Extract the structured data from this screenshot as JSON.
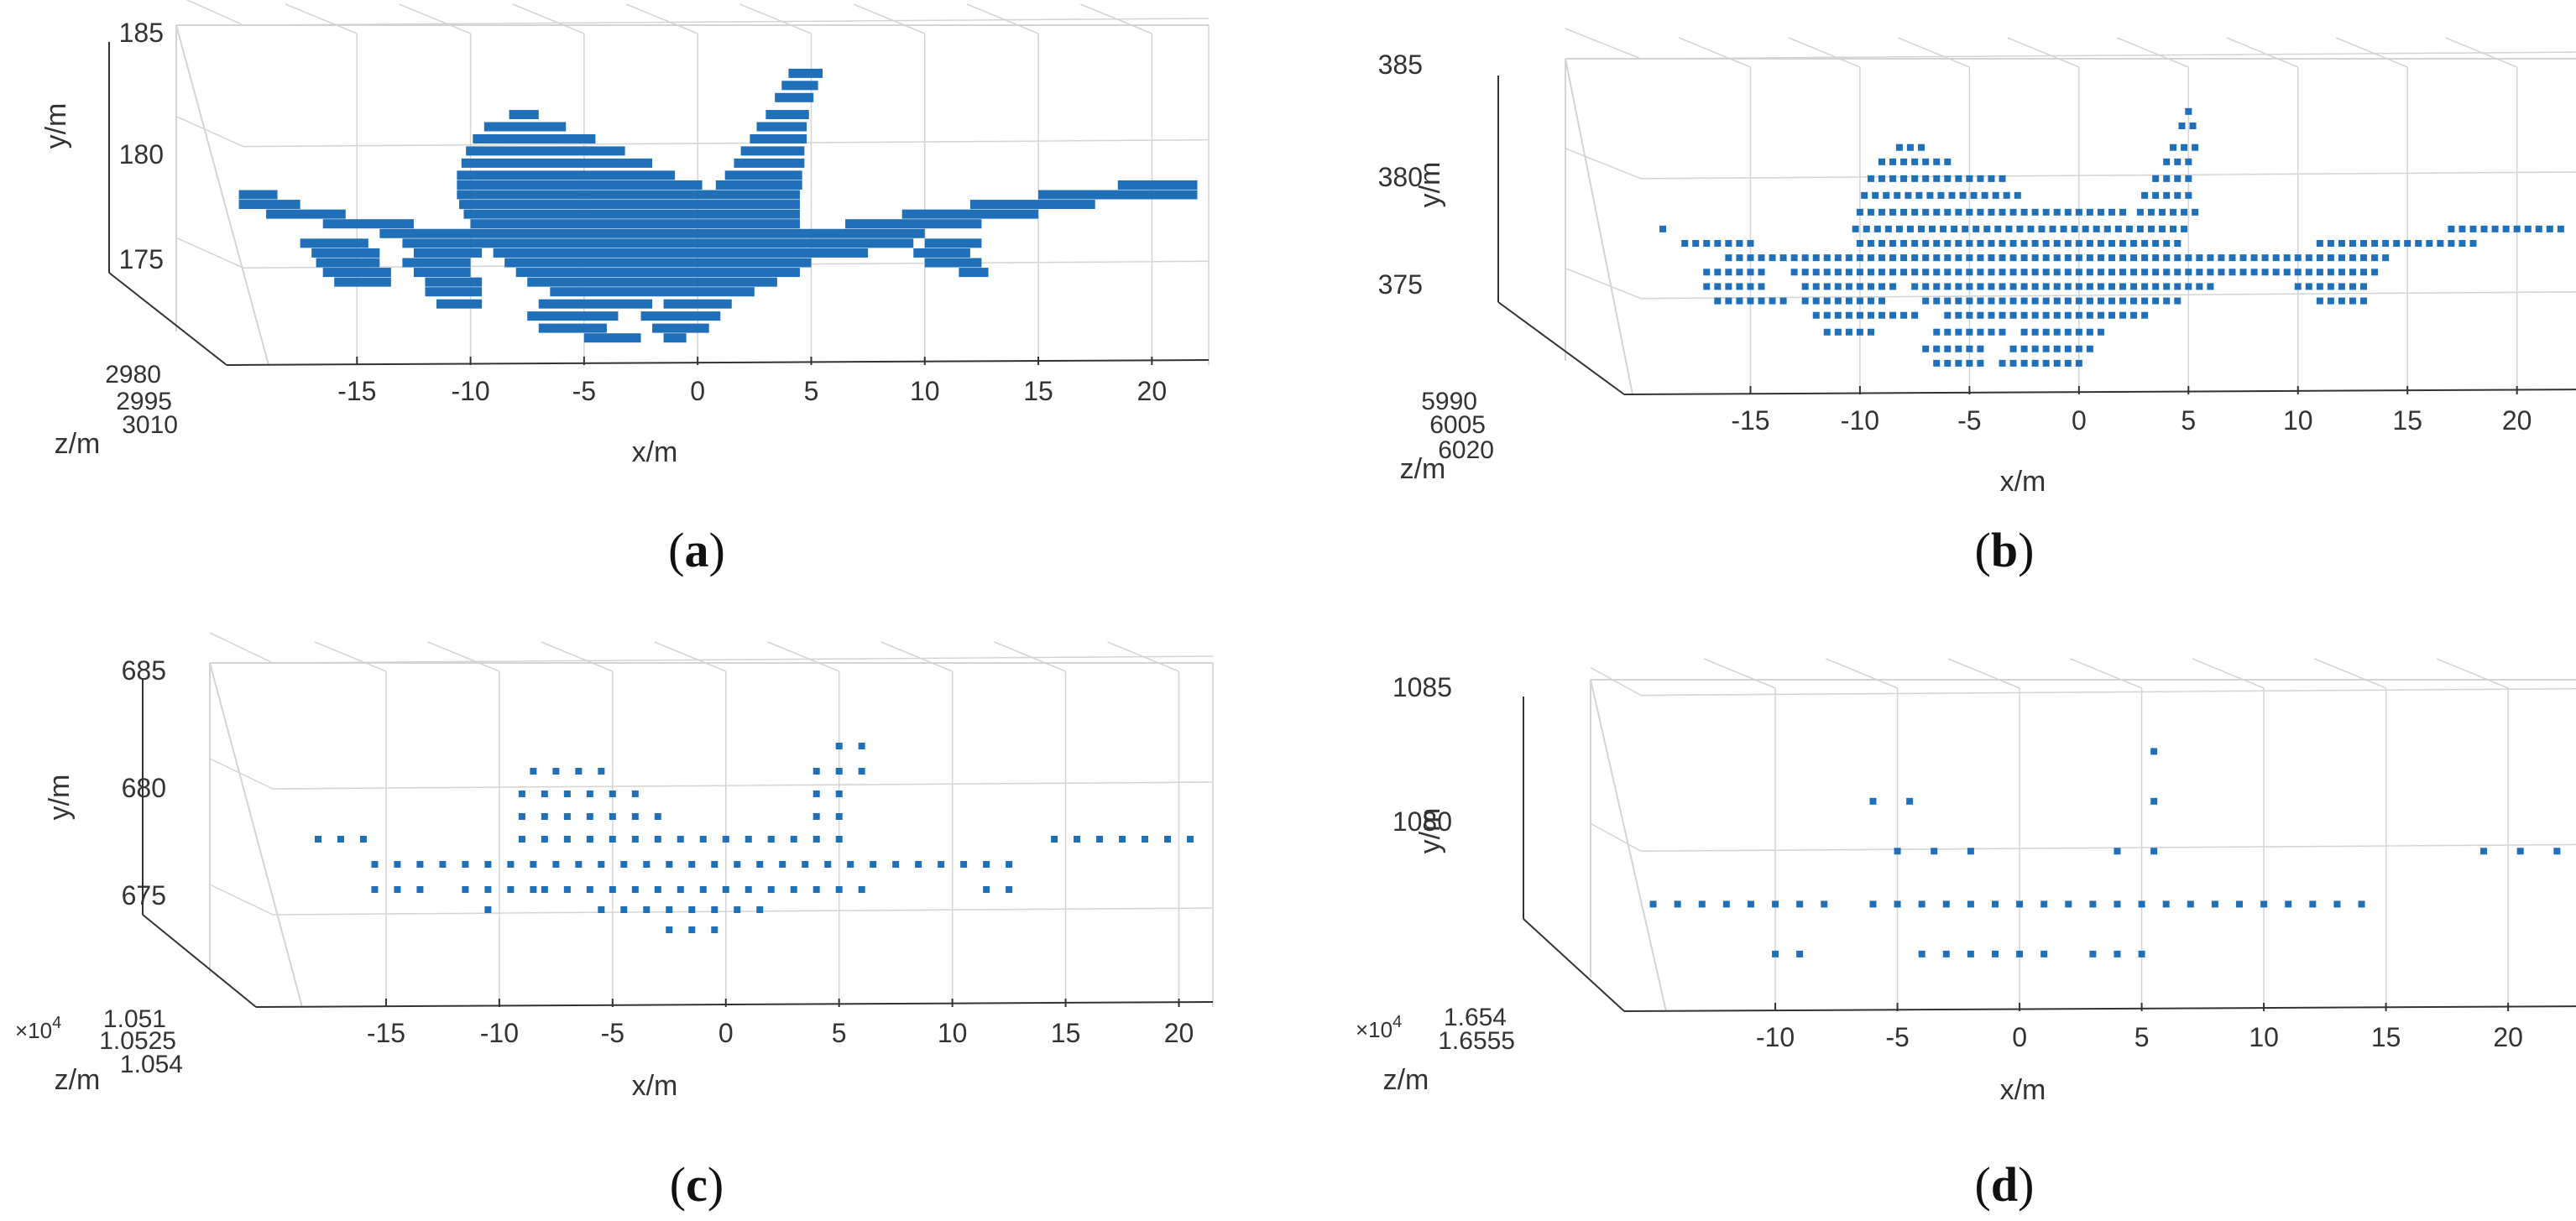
{
  "captions": [
    {
      "open": "(",
      "letter": "a",
      "close": ")"
    },
    {
      "open": "(",
      "letter": "b",
      "close": ")"
    },
    {
      "open": "(",
      "letter": "c",
      "close": ")"
    },
    {
      "open": "(",
      "letter": "d",
      "close": ")"
    }
  ],
  "colors": {
    "points": "#1f6fb9",
    "grid": "#d4d4d4",
    "axis": "#333333",
    "text": "#333333"
  },
  "chart_data": [
    {
      "type": "scatter",
      "panel": "a",
      "xlabel": "x/m",
      "ylabel": "y/m",
      "zlabel": "z/m",
      "xticks": [
        "-15",
        "-10",
        "-5",
        "0",
        "5",
        "10",
        "15",
        "20"
      ],
      "xtick_values": [
        -15,
        -10,
        -5,
        0,
        5,
        10,
        15,
        20
      ],
      "yticks": [
        "175",
        "180",
        "185"
      ],
      "ytick_values": [
        175,
        180,
        185
      ],
      "zticks": [
        "2980",
        "2995",
        "3010"
      ],
      "zexponent": "",
      "xlim": [
        -20,
        22.5
      ],
      "ylim": [
        171,
        185
      ],
      "grid": true,
      "marker": "dense-dash",
      "rows": [
        {
          "y": 183.0,
          "segments": [
            [
              4.0,
              5.5
            ]
          ]
        },
        {
          "y": 182.5,
          "segments": [
            [
              3.7,
              5.3
            ]
          ]
        },
        {
          "y": 182.0,
          "segments": [
            [
              3.4,
              5.1
            ]
          ]
        },
        {
          "y": 181.3,
          "segments": [
            [
              -8.3,
              -7.0
            ],
            [
              3.0,
              4.9
            ]
          ]
        },
        {
          "y": 180.8,
          "segments": [
            [
              -9.4,
              -5.8
            ],
            [
              2.6,
              4.8
            ]
          ]
        },
        {
          "y": 180.3,
          "segments": [
            [
              -9.9,
              -4.5
            ],
            [
              2.3,
              4.8
            ]
          ]
        },
        {
          "y": 179.8,
          "segments": [
            [
              -10.2,
              -3.2
            ],
            [
              1.9,
              4.7
            ]
          ]
        },
        {
          "y": 179.3,
          "segments": [
            [
              -10.4,
              -2.0
            ],
            [
              1.6,
              4.7
            ]
          ]
        },
        {
          "y": 178.8,
          "segments": [
            [
              -10.6,
              -1.0
            ],
            [
              1.2,
              4.6
            ]
          ]
        },
        {
          "y": 178.4,
          "segments": [
            [
              -10.6,
              0.2
            ],
            [
              0.8,
              4.6
            ],
            [
              18.5,
              22.0
            ]
          ]
        },
        {
          "y": 178.0,
          "segments": [
            [
              -20.2,
              -18.5
            ],
            [
              -10.6,
              4.5
            ],
            [
              15.0,
              22.0
            ]
          ]
        },
        {
          "y": 177.6,
          "segments": [
            [
              -20.2,
              -17.5
            ],
            [
              -10.5,
              4.5
            ],
            [
              12.0,
              17.5
            ]
          ]
        },
        {
          "y": 177.2,
          "segments": [
            [
              -19.0,
              -15.5
            ],
            [
              -10.3,
              4.5
            ],
            [
              9.0,
              15.0
            ]
          ]
        },
        {
          "y": 176.8,
          "segments": [
            [
              -16.5,
              -12.5
            ],
            [
              -10.0,
              4.5
            ],
            [
              6.5,
              12.5
            ]
          ]
        },
        {
          "y": 176.4,
          "segments": [
            [
              -14.0,
              10.0
            ]
          ]
        },
        {
          "y": 176.0,
          "segments": [
            [
              -17.5,
              -14.5
            ],
            [
              -13.0,
              9.5
            ],
            [
              10.0,
              12.5
            ]
          ]
        },
        {
          "y": 175.6,
          "segments": [
            [
              -17.0,
              -14.0
            ],
            [
              -12.5,
              -9.5
            ],
            [
              -9.0,
              7.5
            ],
            [
              9.5,
              12.0
            ]
          ]
        },
        {
          "y": 175.2,
          "segments": [
            [
              -16.8,
              -14.0
            ],
            [
              -13.0,
              -10.0
            ],
            [
              -8.5,
              5.0
            ],
            [
              10.0,
              12.5
            ]
          ]
        },
        {
          "y": 174.8,
          "segments": [
            [
              -16.5,
              -13.5
            ],
            [
              -12.5,
              -10.0
            ],
            [
              -8.0,
              4.5
            ],
            [
              11.5,
              12.8
            ]
          ]
        },
        {
          "y": 174.4,
          "segments": [
            [
              -16.0,
              -13.5
            ],
            [
              -12.0,
              -9.5
            ],
            [
              -7.5,
              3.5
            ]
          ]
        },
        {
          "y": 174.0,
          "segments": [
            [
              -12.0,
              -9.5
            ],
            [
              -6.5,
              2.5
            ]
          ]
        },
        {
          "y": 173.5,
          "segments": [
            [
              -11.5,
              -9.5
            ],
            [
              -7.0,
              -2.0
            ],
            [
              -1.5,
              1.5
            ]
          ]
        },
        {
          "y": 173.0,
          "segments": [
            [
              -7.5,
              -3.5
            ],
            [
              -2.5,
              1.0
            ]
          ]
        },
        {
          "y": 172.5,
          "segments": [
            [
              -7.0,
              -4.0
            ],
            [
              -2.0,
              0.5
            ]
          ]
        },
        {
          "y": 172.1,
          "segments": [
            [
              -5.0,
              -2.5
            ],
            [
              -1.5,
              -0.5
            ]
          ]
        }
      ]
    },
    {
      "type": "scatter",
      "panel": "b",
      "xlabel": "x/m",
      "ylabel": "y/m",
      "zlabel": "z/m",
      "xticks": [
        "-15",
        "-10",
        "-5",
        "0",
        "5",
        "10",
        "15",
        "20"
      ],
      "xtick_values": [
        -15,
        -10,
        -5,
        0,
        5,
        10,
        15,
        20
      ],
      "yticks": [
        "375",
        "380",
        "385"
      ],
      "ytick_values": [
        375,
        380,
        385
      ],
      "zticks": [
        "5990",
        "6005",
        "6020"
      ],
      "zexponent": "",
      "xlim": [
        -20,
        23.5
      ],
      "ylim": [
        371,
        385
      ],
      "grid": true,
      "marker": "point-row",
      "rows": [
        {
          "y": 382.8,
          "step": 0.5,
          "segments": [
            [
              5.0,
              5.0
            ]
          ]
        },
        {
          "y": 382.2,
          "step": 0.5,
          "segments": [
            [
              4.7,
              5.3
            ]
          ]
        },
        {
          "y": 381.3,
          "step": 0.5,
          "segments": [
            [
              -8.2,
              -7.0
            ],
            [
              4.3,
              5.3
            ]
          ]
        },
        {
          "y": 380.7,
          "step": 0.5,
          "segments": [
            [
              -9.0,
              -6.0
            ],
            [
              4.0,
              5.3
            ]
          ]
        },
        {
          "y": 380.0,
          "step": 0.5,
          "segments": [
            [
              -9.5,
              -3.5
            ],
            [
              3.5,
              5.3
            ]
          ]
        },
        {
          "y": 379.3,
          "step": 0.5,
          "segments": [
            [
              -9.8,
              -2.5
            ],
            [
              3.0,
              5.3
            ]
          ]
        },
        {
          "y": 378.6,
          "step": 0.5,
          "segments": [
            [
              -10.0,
              2.0
            ],
            [
              2.8,
              5.3
            ]
          ]
        },
        {
          "y": 377.9,
          "step": 0.5,
          "segments": [
            [
              -19.0,
              -18.8
            ],
            [
              -10.2,
              4.8
            ],
            [
              17.0,
              22.0
            ]
          ]
        },
        {
          "y": 377.3,
          "step": 0.5,
          "segments": [
            [
              -18.0,
              -15.0
            ],
            [
              -10.0,
              4.8
            ],
            [
              11.0,
              18.0
            ]
          ]
        },
        {
          "y": 376.7,
          "step": 0.5,
          "segments": [
            [
              -16.0,
              -10.5
            ],
            [
              -10.0,
              10.0
            ],
            [
              10.5,
              14.0
            ]
          ]
        },
        {
          "y": 376.1,
          "step": 0.5,
          "segments": [
            [
              -17.0,
              -14.5
            ],
            [
              -13.0,
              9.5
            ],
            [
              10.0,
              13.5
            ]
          ]
        },
        {
          "y": 375.5,
          "step": 0.5,
          "segments": [
            [
              -17.0,
              -14.5
            ],
            [
              -12.5,
              -8.5
            ],
            [
              -7.5,
              6.0
            ],
            [
              10.0,
              13.0
            ]
          ]
        },
        {
          "y": 374.9,
          "step": 0.5,
          "segments": [
            [
              -16.5,
              -13.5
            ],
            [
              -12.5,
              -9.0
            ],
            [
              -7.0,
              4.5
            ],
            [
              11.0,
              13.0
            ]
          ]
        },
        {
          "y": 374.3,
          "step": 0.5,
          "segments": [
            [
              -12.0,
              -9.0
            ],
            [
              -8.5,
              -7.5
            ],
            [
              -6.0,
              3.0
            ]
          ]
        },
        {
          "y": 373.6,
          "step": 0.5,
          "segments": [
            [
              -11.5,
              -9.5
            ],
            [
              -6.5,
              -3.5
            ],
            [
              -2.5,
              1.0
            ]
          ]
        },
        {
          "y": 372.9,
          "step": 0.5,
          "segments": [
            [
              -7.0,
              -4.5
            ],
            [
              -3.0,
              0.5
            ]
          ]
        },
        {
          "y": 372.3,
          "step": 0.5,
          "segments": [
            [
              -6.5,
              -4.5
            ],
            [
              -3.5,
              0.0
            ]
          ]
        }
      ]
    },
    {
      "type": "scatter",
      "panel": "c",
      "xlabel": "x/m",
      "ylabel": "y/m",
      "zlabel": "z/m",
      "xticks": [
        "-15",
        "-10",
        "-5",
        "0",
        "5",
        "10",
        "15",
        "20"
      ],
      "xtick_values": [
        -15,
        -10,
        -5,
        0,
        5,
        10,
        15,
        20
      ],
      "yticks": [
        "675",
        "680",
        "685"
      ],
      "ytick_values": [
        675,
        680,
        685
      ],
      "zticks": [
        "1.051",
        "1.0525",
        "1.054"
      ],
      "zexponent": "×10^4",
      "xlim": [
        -20,
        21.5
      ],
      "ylim": [
        671,
        685
      ],
      "grid": true,
      "marker": "point-row",
      "rows": [
        {
          "y": 681.7,
          "step": 1.0,
          "segments": [
            [
              5.0,
              6.0
            ]
          ]
        },
        {
          "y": 680.7,
          "step": 1.0,
          "segments": [
            [
              -8.5,
              -5.5
            ],
            [
              4.0,
              6.0
            ]
          ]
        },
        {
          "y": 679.8,
          "step": 1.0,
          "segments": [
            [
              -9.0,
              -3.5
            ],
            [
              4.0,
              5.0
            ]
          ]
        },
        {
          "y": 678.9,
          "step": 1.0,
          "segments": [
            [
              -9.0,
              -2.5
            ],
            [
              4.0,
              5.0
            ]
          ]
        },
        {
          "y": 678.0,
          "step": 1.0,
          "segments": [
            [
              -18.0,
              -16.0
            ],
            [
              -9.0,
              5.0
            ],
            [
              14.5,
              20.5
            ]
          ]
        },
        {
          "y": 677.0,
          "step": 1.0,
          "segments": [
            [
              -15.5,
              13.0
            ]
          ]
        },
        {
          "y": 676.0,
          "step": 1.0,
          "segments": [
            [
              -15.5,
              -13.5
            ],
            [
              -11.5,
              -8.5
            ],
            [
              -8.0,
              6.0
            ],
            [
              11.5,
              13.0
            ]
          ]
        },
        {
          "y": 675.2,
          "step": 1.0,
          "segments": [
            [
              -10.5,
              -10.5
            ],
            [
              -5.5,
              2.0
            ]
          ]
        },
        {
          "y": 674.4,
          "step": 1.0,
          "segments": [
            [
              -2.5,
              0.0
            ]
          ]
        }
      ]
    },
    {
      "type": "scatter",
      "panel": "d",
      "xlabel": "x/m",
      "ylabel": "y/m",
      "zlabel": "z/m",
      "xticks": [
        "-10",
        "-5",
        "0",
        "5",
        "10",
        "15",
        "20"
      ],
      "xtick_values": [
        -10,
        -5,
        0,
        5,
        10,
        15,
        20
      ],
      "yticks": [
        "1080",
        "1085"
      ],
      "ytick_values": [
        1080,
        1085
      ],
      "zticks": [
        "1.654",
        "1.6555"
      ],
      "zexponent": "×10^4",
      "xlim": [
        -15.5,
        23.5
      ],
      "ylim": [
        1075,
        1085.5
      ],
      "grid": true,
      "marker": "point-row",
      "rows": [
        {
          "y": 1083.2,
          "step": 1.0,
          "segments": [
            [
              5.5,
              5.5
            ]
          ]
        },
        {
          "y": 1081.6,
          "step": 1.0,
          "segments": [
            [
              -6.0,
              -6.0
            ],
            [
              -4.5,
              -4.5
            ],
            [
              5.5,
              5.5
            ]
          ]
        },
        {
          "y": 1080.0,
          "step": 1.5,
          "segments": [
            [
              -5.0,
              -2.0
            ],
            [
              4.0,
              5.5
            ],
            [
              19.0,
              23.0
            ]
          ]
        },
        {
          "y": 1078.3,
          "step": 1.0,
          "segments": [
            [
              -15.0,
              -7.5
            ],
            [
              -6.0,
              14.0
            ]
          ]
        },
        {
          "y": 1076.7,
          "step": 1.0,
          "segments": [
            [
              -10.0,
              -9.0
            ],
            [
              -4.0,
              1.5
            ],
            [
              3.0,
              5.5
            ]
          ]
        }
      ]
    }
  ]
}
